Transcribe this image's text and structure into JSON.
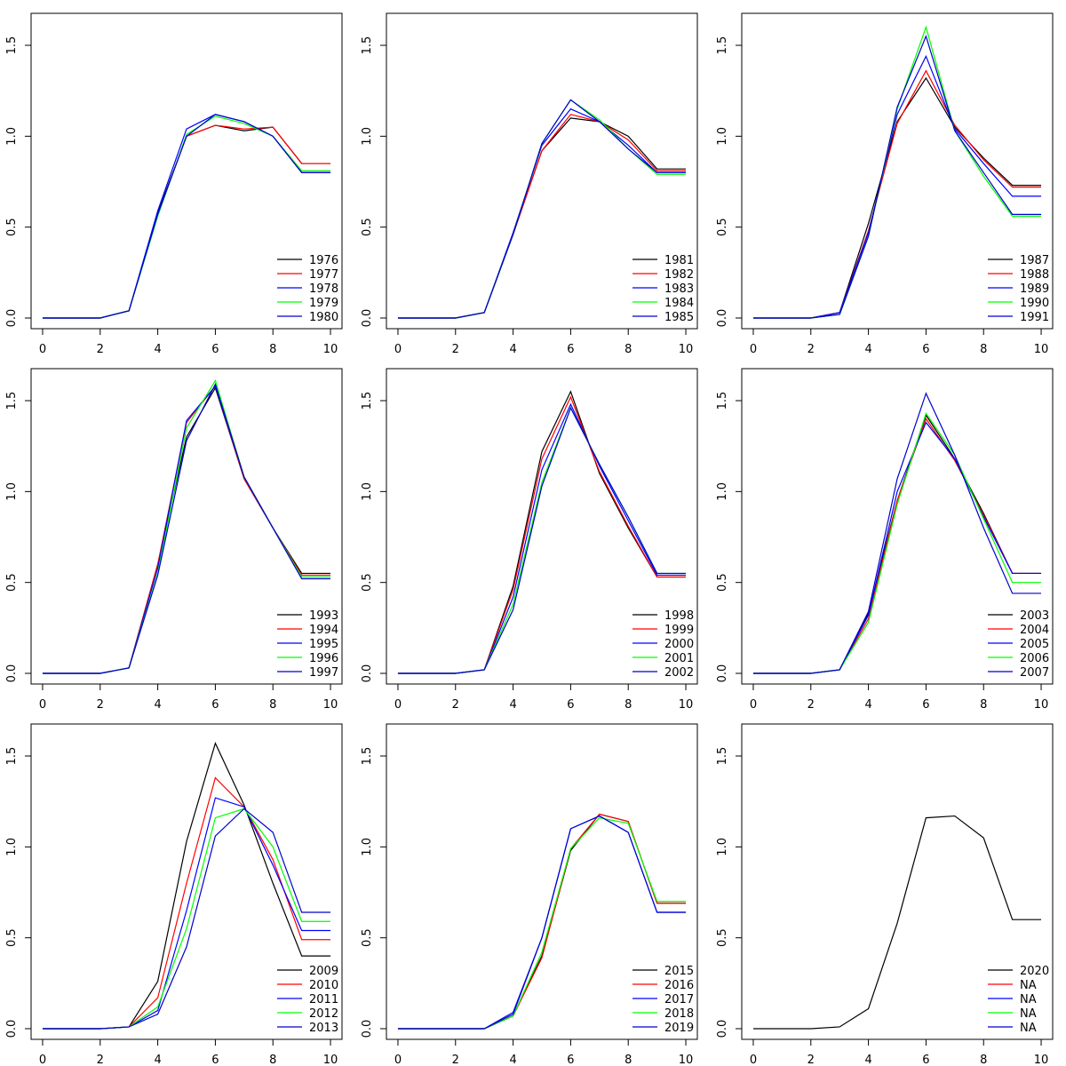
{
  "chart_data": [
    {
      "type": "line",
      "x": [
        0,
        2,
        3,
        4,
        5,
        6,
        7,
        8,
        9,
        10
      ],
      "xlim": [
        -0.4,
        10.4
      ],
      "ylim": [
        -0.0586,
        1.676
      ],
      "xticks": [
        0,
        2,
        4,
        6,
        8,
        10
      ],
      "yticks": [
        {
          "value": 0,
          "label": "0.0"
        },
        {
          "value": 0.5,
          "label": "0.5"
        },
        {
          "value": 1,
          "label": "1.0"
        },
        {
          "value": 1.5,
          "label": "1.5"
        }
      ],
      "legend": "bottom right",
      "series": [
        {
          "name": "1976",
          "color": "#000000",
          "values": [
            0,
            0,
            0.04,
            0.58,
            1.0,
            1.06,
            1.03,
            1.05,
            0.85,
            0.85
          ]
        },
        {
          "name": "1977",
          "color": "#ff0000",
          "values": [
            0,
            0,
            0.04,
            0.57,
            1.0,
            1.06,
            1.04,
            1.05,
            0.85,
            0.85
          ]
        },
        {
          "name": "1978",
          "color": "#0000ff",
          "values": [
            0,
            0,
            0.04,
            0.59,
            1.04,
            1.12,
            1.08,
            1.0,
            0.8,
            0.8
          ]
        },
        {
          "name": "1979",
          "color": "#00ff00",
          "values": [
            0,
            0,
            0.04,
            0.56,
            1.01,
            1.11,
            1.07,
            1.0,
            0.81,
            0.81
          ]
        },
        {
          "name": "1980",
          "color": "#0000cd",
          "values": [
            0,
            0,
            0.04,
            0.57,
            1.0,
            1.12,
            1.08,
            1.0,
            0.8,
            0.8
          ]
        }
      ]
    },
    {
      "type": "line",
      "x": [
        0,
        2,
        3,
        4,
        5,
        6,
        7,
        8,
        9,
        10
      ],
      "xlim": [
        -0.4,
        10.4
      ],
      "ylim": [
        -0.0586,
        1.676
      ],
      "xticks": [
        0,
        2,
        4,
        6,
        8,
        10
      ],
      "yticks": [
        {
          "value": 0,
          "label": "0.0"
        },
        {
          "value": 0.5,
          "label": "0.5"
        },
        {
          "value": 1,
          "label": "1.0"
        },
        {
          "value": 1.5,
          "label": "1.5"
        }
      ],
      "legend": "bottom right",
      "series": [
        {
          "name": "1981",
          "color": "#000000",
          "values": [
            0,
            0,
            0.03,
            0.46,
            0.92,
            1.1,
            1.08,
            1.0,
            0.82,
            0.82
          ]
        },
        {
          "name": "1982",
          "color": "#ff0000",
          "values": [
            0,
            0,
            0.03,
            0.46,
            0.92,
            1.12,
            1.08,
            0.98,
            0.81,
            0.81
          ]
        },
        {
          "name": "1983",
          "color": "#0000ff",
          "values": [
            0,
            0,
            0.03,
            0.47,
            0.95,
            1.15,
            1.08,
            0.95,
            0.8,
            0.8
          ]
        },
        {
          "name": "1984",
          "color": "#00ff00",
          "values": [
            0,
            0,
            0.03,
            0.46,
            0.96,
            1.2,
            1.09,
            0.93,
            0.79,
            0.79
          ]
        },
        {
          "name": "1985",
          "color": "#0000cd",
          "values": [
            0,
            0,
            0.03,
            0.46,
            0.96,
            1.2,
            1.08,
            0.93,
            0.8,
            0.8
          ]
        }
      ]
    },
    {
      "type": "line",
      "x": [
        0,
        2,
        3,
        4,
        5,
        6,
        7,
        8,
        9,
        10
      ],
      "xlim": [
        -0.4,
        10.4
      ],
      "ylim": [
        -0.0586,
        1.676
      ],
      "xticks": [
        0,
        2,
        4,
        6,
        8,
        10
      ],
      "yticks": [
        {
          "value": 0,
          "label": "0.0"
        },
        {
          "value": 0.5,
          "label": "0.5"
        },
        {
          "value": 1,
          "label": "1.0"
        },
        {
          "value": 1.5,
          "label": "1.5"
        }
      ],
      "legend": "bottom right",
      "series": [
        {
          "name": "1987",
          "color": "#000000",
          "values": [
            0,
            0,
            0.03,
            0.52,
            1.08,
            1.32,
            1.05,
            0.88,
            0.73,
            0.73
          ]
        },
        {
          "name": "1988",
          "color": "#ff0000",
          "values": [
            0,
            0,
            0.03,
            0.48,
            1.07,
            1.36,
            1.06,
            0.87,
            0.72,
            0.72
          ]
        },
        {
          "name": "1989",
          "color": "#0000ff",
          "values": [
            0,
            0,
            0.03,
            0.47,
            1.12,
            1.44,
            1.04,
            0.85,
            0.67,
            0.67
          ]
        },
        {
          "name": "1990",
          "color": "#00ff00",
          "values": [
            0,
            0,
            0.02,
            0.45,
            1.15,
            1.6,
            1.03,
            0.78,
            0.56,
            0.56
          ]
        },
        {
          "name": "1991",
          "color": "#0000cd",
          "values": [
            0,
            0,
            0.02,
            0.45,
            1.16,
            1.55,
            1.03,
            0.8,
            0.57,
            0.57
          ]
        }
      ]
    },
    {
      "type": "line",
      "x": [
        0,
        2,
        3,
        4,
        5,
        6,
        7,
        8,
        9,
        10
      ],
      "xlim": [
        -0.4,
        10.4
      ],
      "ylim": [
        -0.0586,
        1.676
      ],
      "xticks": [
        0,
        2,
        4,
        6,
        8,
        10
      ],
      "yticks": [
        {
          "value": 0,
          "label": "0.0"
        },
        {
          "value": 0.5,
          "label": "0.5"
        },
        {
          "value": 1,
          "label": "1.0"
        },
        {
          "value": 1.5,
          "label": "1.5"
        }
      ],
      "legend": "bottom right",
      "series": [
        {
          "name": "1993",
          "color": "#000000",
          "values": [
            0,
            0,
            0.03,
            0.6,
            1.3,
            1.57,
            1.07,
            0.8,
            0.55,
            0.55
          ]
        },
        {
          "name": "1994",
          "color": "#ff0000",
          "values": [
            0,
            0,
            0.03,
            0.6,
            1.38,
            1.58,
            1.07,
            0.8,
            0.54,
            0.54
          ]
        },
        {
          "name": "1995",
          "color": "#0000ff",
          "values": [
            0,
            0,
            0.03,
            0.58,
            1.39,
            1.58,
            1.08,
            0.8,
            0.53,
            0.53
          ]
        },
        {
          "name": "1996",
          "color": "#00ff00",
          "values": [
            0,
            0,
            0.03,
            0.55,
            1.35,
            1.61,
            1.08,
            0.8,
            0.53,
            0.53
          ]
        },
        {
          "name": "1997",
          "color": "#0000cd",
          "values": [
            0,
            0,
            0.03,
            0.54,
            1.28,
            1.59,
            1.08,
            0.8,
            0.52,
            0.52
          ]
        }
      ]
    },
    {
      "type": "line",
      "x": [
        0,
        2,
        3,
        4,
        5,
        6,
        7,
        8,
        9,
        10
      ],
      "xlim": [
        -0.4,
        10.4
      ],
      "ylim": [
        -0.0586,
        1.676
      ],
      "xticks": [
        0,
        2,
        4,
        6,
        8,
        10
      ],
      "yticks": [
        {
          "value": 0,
          "label": "0.0"
        },
        {
          "value": 0.5,
          "label": "0.5"
        },
        {
          "value": 1,
          "label": "1.0"
        },
        {
          "value": 1.5,
          "label": "1.5"
        }
      ],
      "legend": "bottom right",
      "series": [
        {
          "name": "1998",
          "color": "#000000",
          "values": [
            0,
            0,
            0.02,
            0.48,
            1.22,
            1.55,
            1.1,
            0.8,
            0.53,
            0.53
          ]
        },
        {
          "name": "1999",
          "color": "#ff0000",
          "values": [
            0,
            0,
            0.02,
            0.46,
            1.18,
            1.52,
            1.11,
            0.81,
            0.53,
            0.53
          ]
        },
        {
          "name": "2000",
          "color": "#0000ff",
          "values": [
            0,
            0,
            0.02,
            0.42,
            1.12,
            1.48,
            1.14,
            0.84,
            0.54,
            0.54
          ]
        },
        {
          "name": "2001",
          "color": "#00ff00",
          "values": [
            0,
            0,
            0.02,
            0.38,
            1.05,
            1.46,
            1.15,
            0.86,
            0.55,
            0.55
          ]
        },
        {
          "name": "2002",
          "color": "#0000cd",
          "values": [
            0,
            0,
            0.02,
            0.35,
            1.03,
            1.46,
            1.15,
            0.86,
            0.55,
            0.55
          ]
        }
      ]
    },
    {
      "type": "line",
      "x": [
        0,
        2,
        3,
        4,
        5,
        6,
        7,
        8,
        9,
        10
      ],
      "xlim": [
        -0.4,
        10.4
      ],
      "ylim": [
        -0.0586,
        1.676
      ],
      "xticks": [
        0,
        2,
        4,
        6,
        8,
        10
      ],
      "yticks": [
        {
          "value": 0,
          "label": "0.0"
        },
        {
          "value": 0.5,
          "label": "0.5"
        },
        {
          "value": 1,
          "label": "1.0"
        },
        {
          "value": 1.5,
          "label": "1.5"
        }
      ],
      "legend": "bottom right",
      "series": [
        {
          "name": "2003",
          "color": "#000000",
          "values": [
            0,
            0,
            0.02,
            0.33,
            0.95,
            1.42,
            1.18,
            0.88,
            0.55,
            0.55
          ]
        },
        {
          "name": "2004",
          "color": "#ff0000",
          "values": [
            0,
            0,
            0.02,
            0.3,
            0.95,
            1.4,
            1.17,
            0.87,
            0.55,
            0.55
          ]
        },
        {
          "name": "2005",
          "color": "#0000ff",
          "values": [
            0,
            0,
            0.02,
            0.32,
            1.0,
            1.38,
            1.18,
            0.86,
            0.55,
            0.55
          ]
        },
        {
          "name": "2006",
          "color": "#00ff00",
          "values": [
            0,
            0,
            0.02,
            0.28,
            0.93,
            1.43,
            1.2,
            0.85,
            0.5,
            0.5
          ]
        },
        {
          "name": "2007",
          "color": "#0000cd",
          "values": [
            0,
            0,
            0.02,
            0.34,
            1.07,
            1.54,
            1.2,
            0.8,
            0.44,
            0.44
          ]
        }
      ]
    },
    {
      "type": "line",
      "x": [
        0,
        2,
        3,
        4,
        5,
        6,
        7,
        8,
        9,
        10
      ],
      "xlim": [
        -0.4,
        10.4
      ],
      "ylim": [
        -0.0586,
        1.676
      ],
      "xticks": [
        0,
        2,
        4,
        6,
        8,
        10
      ],
      "yticks": [
        {
          "value": 0,
          "label": "0.0"
        },
        {
          "value": 0.5,
          "label": "0.5"
        },
        {
          "value": 1,
          "label": "1.0"
        },
        {
          "value": 1.5,
          "label": "1.5"
        }
      ],
      "legend": "bottom right",
      "series": [
        {
          "name": "2009",
          "color": "#000000",
          "values": [
            0,
            0,
            0.01,
            0.26,
            1.03,
            1.57,
            1.23,
            0.8,
            0.4,
            0.4
          ]
        },
        {
          "name": "2010",
          "color": "#ff0000",
          "values": [
            0,
            0,
            0.01,
            0.17,
            0.8,
            1.38,
            1.22,
            0.93,
            0.49,
            0.49
          ]
        },
        {
          "name": "2011",
          "color": "#0000ff",
          "values": [
            0,
            0,
            0.01,
            0.1,
            0.65,
            1.27,
            1.22,
            0.9,
            0.54,
            0.54
          ]
        },
        {
          "name": "2012",
          "color": "#00ff00",
          "values": [
            0,
            0,
            0.01,
            0.12,
            0.55,
            1.16,
            1.21,
            1.0,
            0.59,
            0.59
          ]
        },
        {
          "name": "2013",
          "color": "#0000cd",
          "values": [
            0,
            0,
            0.01,
            0.08,
            0.45,
            1.06,
            1.21,
            1.08,
            0.64,
            0.64
          ]
        }
      ]
    },
    {
      "type": "line",
      "x": [
        0,
        2,
        3,
        4,
        5,
        6,
        7,
        8,
        9,
        10
      ],
      "xlim": [
        -0.4,
        10.4
      ],
      "ylim": [
        -0.0586,
        1.676
      ],
      "xticks": [
        0,
        2,
        4,
        6,
        8,
        10
      ],
      "yticks": [
        {
          "value": 0,
          "label": "0.0"
        },
        {
          "value": 0.5,
          "label": "0.5"
        },
        {
          "value": 1,
          "label": "1.0"
        },
        {
          "value": 1.5,
          "label": "1.5"
        }
      ],
      "legend": "bottom right",
      "series": [
        {
          "name": "2015",
          "color": "#000000",
          "values": [
            0,
            0,
            0,
            0.07,
            0.4,
            0.98,
            1.18,
            1.14,
            0.69,
            0.69
          ]
        },
        {
          "name": "2016",
          "color": "#ff0000",
          "values": [
            0,
            0,
            0,
            0.07,
            0.39,
            0.99,
            1.18,
            1.14,
            0.69,
            0.69
          ]
        },
        {
          "name": "2017",
          "color": "#0000ff",
          "values": [
            0,
            0,
            0,
            0.09,
            0.5,
            1.1,
            1.17,
            1.08,
            0.64,
            0.64
          ]
        },
        {
          "name": "2018",
          "color": "#00ff00",
          "values": [
            0,
            0,
            0,
            0.07,
            0.42,
            0.99,
            1.16,
            1.13,
            0.7,
            0.7
          ]
        },
        {
          "name": "2019",
          "color": "#0000cd",
          "values": [
            0,
            0,
            0,
            0.08,
            0.5,
            1.1,
            1.17,
            1.08,
            0.64,
            0.64
          ]
        }
      ]
    },
    {
      "type": "line",
      "x": [
        0,
        2,
        3,
        4,
        5,
        6,
        7,
        8,
        9,
        10
      ],
      "xlim": [
        -0.4,
        10.4
      ],
      "ylim": [
        -0.0586,
        1.676
      ],
      "xticks": [
        0,
        2,
        4,
        6,
        8,
        10
      ],
      "yticks": [
        {
          "value": 0,
          "label": "0.0"
        },
        {
          "value": 0.5,
          "label": "0.5"
        },
        {
          "value": 1,
          "label": "1.0"
        },
        {
          "value": 1.5,
          "label": "1.5"
        }
      ],
      "legend": "bottom right",
      "series": [
        {
          "name": "2020",
          "color": "#000000",
          "values": [
            0,
            0,
            0.01,
            0.11,
            0.58,
            1.16,
            1.17,
            1.05,
            0.6,
            0.6
          ]
        },
        {
          "name": "NA",
          "color": "#ff0000",
          "values": [
            null,
            null,
            null,
            null,
            null,
            null,
            null,
            null,
            null,
            null
          ]
        },
        {
          "name": "NA",
          "color": "#0000ff",
          "values": [
            null,
            null,
            null,
            null,
            null,
            null,
            null,
            null,
            null,
            null
          ]
        },
        {
          "name": "NA",
          "color": "#00ff00",
          "values": [
            null,
            null,
            null,
            null,
            null,
            null,
            null,
            null,
            null,
            null
          ]
        },
        {
          "name": "NA",
          "color": "#0000cd",
          "values": [
            null,
            null,
            null,
            null,
            null,
            null,
            null,
            null,
            null,
            null
          ]
        }
      ]
    }
  ]
}
